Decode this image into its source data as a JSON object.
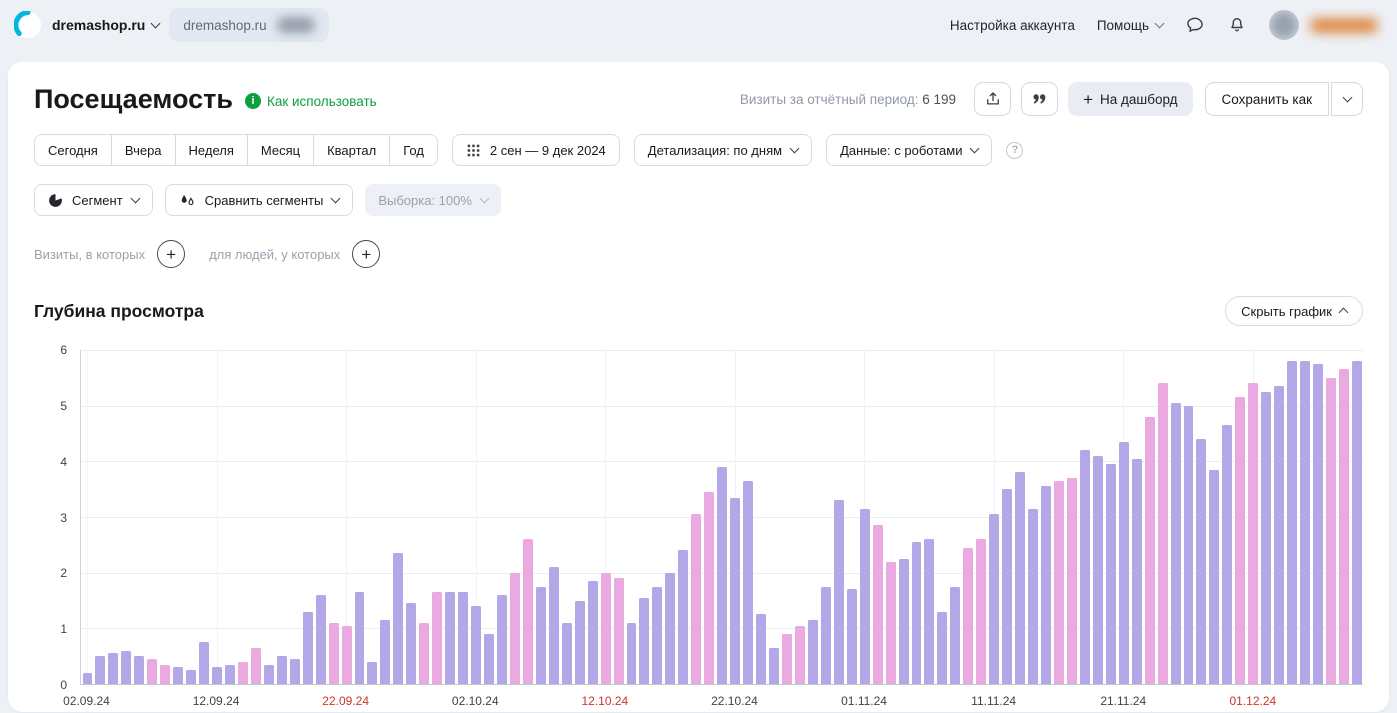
{
  "topbar": {
    "counter_name": "dremashop.ru",
    "tab_name": "dremashop.ru",
    "account_settings": "Настройка аккаунта",
    "help": "Помощь"
  },
  "header": {
    "title": "Посещаемость",
    "how_to_use": "Как использовать",
    "visits_label": "Визиты за отчётный период:",
    "visits_value": "6 199",
    "dashboard_button": "На дашборд",
    "save_as_button": "Сохранить как"
  },
  "period_controls": {
    "presets": [
      "Сегодня",
      "Вчера",
      "Неделя",
      "Месяц",
      "Квартал",
      "Год"
    ],
    "date_range": "2 сен — 9 дек 2024",
    "detail": "Детализация: по дням",
    "data_mode": "Данные: с роботами"
  },
  "segment_controls": {
    "segment": "Сегмент",
    "compare": "Сравнить сегменты",
    "sample": "Выборка: 100%"
  },
  "filters": {
    "visits_label": "Визиты, в которых",
    "people_label": "для людей, у которых"
  },
  "chart_section": {
    "title": "Глубина просмотра",
    "hide_button": "Скрыть график"
  },
  "chart_data": {
    "type": "bar",
    "title": "Глубина просмотра",
    "xlabel": "",
    "ylabel": "",
    "ylim": [
      0,
      6
    ],
    "yticks": [
      0,
      1,
      2,
      3,
      4,
      5,
      6
    ],
    "legend": null,
    "grid": true,
    "colors": {
      "weekday": "#b4a7e8",
      "weekend": "#eba9e2"
    },
    "x_ticks": [
      {
        "index": 0,
        "label": "02.09.24",
        "weekend": false
      },
      {
        "index": 10,
        "label": "12.09.24",
        "weekend": false
      },
      {
        "index": 20,
        "label": "22.09.24",
        "weekend": true
      },
      {
        "index": 30,
        "label": "02.10.24",
        "weekend": false
      },
      {
        "index": 40,
        "label": "12.10.24",
        "weekend": true
      },
      {
        "index": 50,
        "label": "22.10.24",
        "weekend": false
      },
      {
        "index": 60,
        "label": "01.11.24",
        "weekend": false
      },
      {
        "index": 70,
        "label": "11.11.24",
        "weekend": false
      },
      {
        "index": 80,
        "label": "21.11.24",
        "weekend": false
      },
      {
        "index": 90,
        "label": "01.12.24",
        "weekend": true
      }
    ],
    "points": [
      {
        "date": "02.09.24",
        "value": 0.2,
        "weekend": false
      },
      {
        "date": "03.09.24",
        "value": 0.5,
        "weekend": false
      },
      {
        "date": "04.09.24",
        "value": 0.55,
        "weekend": false
      },
      {
        "date": "05.09.24",
        "value": 0.6,
        "weekend": false
      },
      {
        "date": "06.09.24",
        "value": 0.5,
        "weekend": false
      },
      {
        "date": "07.09.24",
        "value": 0.45,
        "weekend": true
      },
      {
        "date": "08.09.24",
        "value": 0.35,
        "weekend": true
      },
      {
        "date": "09.09.24",
        "value": 0.3,
        "weekend": false
      },
      {
        "date": "10.09.24",
        "value": 0.25,
        "weekend": false
      },
      {
        "date": "11.09.24",
        "value": 0.75,
        "weekend": false
      },
      {
        "date": "12.09.24",
        "value": 0.3,
        "weekend": false
      },
      {
        "date": "13.09.24",
        "value": 0.35,
        "weekend": false
      },
      {
        "date": "14.09.24",
        "value": 0.4,
        "weekend": true
      },
      {
        "date": "15.09.24",
        "value": 0.65,
        "weekend": true
      },
      {
        "date": "16.09.24",
        "value": 0.35,
        "weekend": false
      },
      {
        "date": "17.09.24",
        "value": 0.5,
        "weekend": false
      },
      {
        "date": "18.09.24",
        "value": 0.45,
        "weekend": false
      },
      {
        "date": "19.09.24",
        "value": 1.3,
        "weekend": false
      },
      {
        "date": "20.09.24",
        "value": 1.6,
        "weekend": false
      },
      {
        "date": "21.09.24",
        "value": 1.1,
        "weekend": true
      },
      {
        "date": "22.09.24",
        "value": 1.05,
        "weekend": true
      },
      {
        "date": "23.09.24",
        "value": 1.65,
        "weekend": false
      },
      {
        "date": "24.09.24",
        "value": 0.4,
        "weekend": false
      },
      {
        "date": "25.09.24",
        "value": 1.15,
        "weekend": false
      },
      {
        "date": "26.09.24",
        "value": 2.35,
        "weekend": false
      },
      {
        "date": "27.09.24",
        "value": 1.45,
        "weekend": false
      },
      {
        "date": "28.09.24",
        "value": 1.1,
        "weekend": true
      },
      {
        "date": "29.09.24",
        "value": 1.65,
        "weekend": true
      },
      {
        "date": "30.09.24",
        "value": 1.65,
        "weekend": false
      },
      {
        "date": "01.10.24",
        "value": 1.65,
        "weekend": false
      },
      {
        "date": "02.10.24",
        "value": 1.4,
        "weekend": false
      },
      {
        "date": "03.10.24",
        "value": 0.9,
        "weekend": false
      },
      {
        "date": "04.10.24",
        "value": 1.6,
        "weekend": false
      },
      {
        "date": "05.10.24",
        "value": 2.0,
        "weekend": true
      },
      {
        "date": "06.10.24",
        "value": 2.6,
        "weekend": true
      },
      {
        "date": "07.10.24",
        "value": 1.75,
        "weekend": false
      },
      {
        "date": "08.10.24",
        "value": 2.1,
        "weekend": false
      },
      {
        "date": "09.10.24",
        "value": 1.1,
        "weekend": false
      },
      {
        "date": "10.10.24",
        "value": 1.5,
        "weekend": false
      },
      {
        "date": "11.10.24",
        "value": 1.85,
        "weekend": false
      },
      {
        "date": "12.10.24",
        "value": 2.0,
        "weekend": true
      },
      {
        "date": "13.10.24",
        "value": 1.9,
        "weekend": true
      },
      {
        "date": "14.10.24",
        "value": 1.1,
        "weekend": false
      },
      {
        "date": "15.10.24",
        "value": 1.55,
        "weekend": false
      },
      {
        "date": "16.10.24",
        "value": 1.75,
        "weekend": false
      },
      {
        "date": "17.10.24",
        "value": 2.0,
        "weekend": false
      },
      {
        "date": "18.10.24",
        "value": 2.4,
        "weekend": false
      },
      {
        "date": "19.10.24",
        "value": 3.05,
        "weekend": true
      },
      {
        "date": "20.10.24",
        "value": 3.45,
        "weekend": true
      },
      {
        "date": "21.10.24",
        "value": 3.9,
        "weekend": false
      },
      {
        "date": "22.10.24",
        "value": 3.35,
        "weekend": false
      },
      {
        "date": "23.10.24",
        "value": 3.65,
        "weekend": false
      },
      {
        "date": "24.10.24",
        "value": 1.25,
        "weekend": false
      },
      {
        "date": "25.10.24",
        "value": 0.65,
        "weekend": false
      },
      {
        "date": "26.10.24",
        "value": 0.9,
        "weekend": true
      },
      {
        "date": "27.10.24",
        "value": 1.05,
        "weekend": true
      },
      {
        "date": "28.10.24",
        "value": 1.15,
        "weekend": false
      },
      {
        "date": "29.10.24",
        "value": 1.75,
        "weekend": false
      },
      {
        "date": "30.10.24",
        "value": 3.3,
        "weekend": false
      },
      {
        "date": "31.10.24",
        "value": 1.7,
        "weekend": false
      },
      {
        "date": "01.11.24",
        "value": 3.15,
        "weekend": false
      },
      {
        "date": "02.11.24",
        "value": 2.85,
        "weekend": true
      },
      {
        "date": "03.11.24",
        "value": 2.2,
        "weekend": true
      },
      {
        "date": "04.11.24",
        "value": 2.25,
        "weekend": false
      },
      {
        "date": "05.11.24",
        "value": 2.55,
        "weekend": false
      },
      {
        "date": "06.11.24",
        "value": 2.6,
        "weekend": false
      },
      {
        "date": "07.11.24",
        "value": 1.3,
        "weekend": false
      },
      {
        "date": "08.11.24",
        "value": 1.75,
        "weekend": false
      },
      {
        "date": "09.11.24",
        "value": 2.45,
        "weekend": true
      },
      {
        "date": "10.11.24",
        "value": 2.6,
        "weekend": true
      },
      {
        "date": "11.11.24",
        "value": 3.05,
        "weekend": false
      },
      {
        "date": "12.11.24",
        "value": 3.5,
        "weekend": false
      },
      {
        "date": "13.11.24",
        "value": 3.8,
        "weekend": false
      },
      {
        "date": "14.11.24",
        "value": 3.15,
        "weekend": false
      },
      {
        "date": "15.11.24",
        "value": 3.55,
        "weekend": false
      },
      {
        "date": "16.11.24",
        "value": 3.65,
        "weekend": true
      },
      {
        "date": "17.11.24",
        "value": 3.7,
        "weekend": true
      },
      {
        "date": "18.11.24",
        "value": 4.2,
        "weekend": false
      },
      {
        "date": "19.11.24",
        "value": 4.1,
        "weekend": false
      },
      {
        "date": "20.11.24",
        "value": 3.95,
        "weekend": false
      },
      {
        "date": "21.11.24",
        "value": 4.35,
        "weekend": false
      },
      {
        "date": "22.11.24",
        "value": 4.05,
        "weekend": false
      },
      {
        "date": "23.11.24",
        "value": 4.8,
        "weekend": true
      },
      {
        "date": "24.11.24",
        "value": 5.4,
        "weekend": true
      },
      {
        "date": "25.11.24",
        "value": 5.05,
        "weekend": false
      },
      {
        "date": "26.11.24",
        "value": 5.0,
        "weekend": false
      },
      {
        "date": "27.11.24",
        "value": 4.4,
        "weekend": false
      },
      {
        "date": "28.11.24",
        "value": 3.85,
        "weekend": false
      },
      {
        "date": "29.11.24",
        "value": 4.65,
        "weekend": false
      },
      {
        "date": "30.11.24",
        "value": 5.15,
        "weekend": true
      },
      {
        "date": "01.12.24",
        "value": 5.4,
        "weekend": true
      },
      {
        "date": "02.12.24",
        "value": 5.25,
        "weekend": false
      },
      {
        "date": "03.12.24",
        "value": 5.35,
        "weekend": false
      },
      {
        "date": "04.12.24",
        "value": 5.8,
        "weekend": false
      },
      {
        "date": "05.12.24",
        "value": 5.8,
        "weekend": false
      },
      {
        "date": "06.12.24",
        "value": 5.75,
        "weekend": false
      },
      {
        "date": "07.12.24",
        "value": 5.5,
        "weekend": true
      },
      {
        "date": "08.12.24",
        "value": 5.65,
        "weekend": true
      },
      {
        "date": "09.12.24",
        "value": 5.8,
        "weekend": false
      }
    ]
  }
}
